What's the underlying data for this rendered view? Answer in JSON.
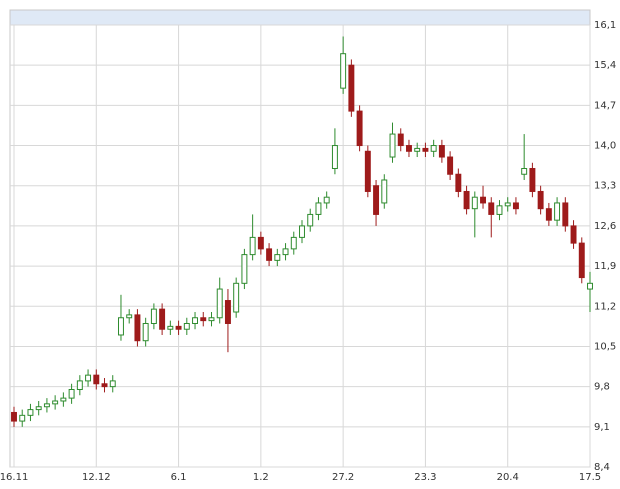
{
  "chart_data": {
    "type": "candlestick",
    "categories": [
      "16.11",
      null,
      null,
      null,
      null,
      null,
      null,
      null,
      null,
      null,
      "12.12",
      null,
      null,
      null,
      null,
      null,
      null,
      null,
      null,
      null,
      "6.1",
      null,
      null,
      null,
      null,
      null,
      null,
      null,
      null,
      null,
      "1.2",
      null,
      null,
      null,
      null,
      null,
      null,
      null,
      null,
      null,
      "27.2",
      null,
      null,
      null,
      null,
      null,
      null,
      null,
      null,
      null,
      "23.3",
      null,
      null,
      null,
      null,
      null,
      null,
      null,
      null,
      null,
      "20.4",
      null,
      null,
      null,
      null,
      null,
      null,
      null,
      null,
      null,
      "17.5"
    ],
    "open": [
      9.35,
      9.2,
      9.3,
      9.4,
      9.45,
      9.5,
      9.55,
      9.6,
      9.75,
      9.9,
      10.0,
      9.85,
      9.8,
      10.7,
      11.0,
      11.05,
      10.6,
      10.9,
      11.15,
      10.8,
      10.85,
      10.8,
      10.9,
      11.0,
      10.95,
      11.0,
      11.3,
      11.1,
      11.6,
      12.1,
      12.4,
      12.2,
      12.0,
      12.1,
      12.2,
      12.4,
      12.6,
      12.8,
      13.0,
      13.6,
      15.0,
      15.4,
      14.6,
      13.9,
      13.3,
      13.0,
      13.8,
      14.2,
      14.0,
      13.9,
      13.95,
      13.9,
      14.0,
      13.8,
      13.5,
      13.2,
      12.9,
      13.1,
      13.0,
      12.8,
      12.95,
      13.0,
      13.5,
      13.6,
      13.2,
      12.9,
      12.7,
      13.0,
      12.6,
      12.3,
      11.5
    ],
    "high": [
      9.45,
      9.4,
      9.5,
      9.55,
      9.6,
      9.65,
      9.7,
      9.85,
      10.0,
      10.1,
      10.1,
      9.95,
      10.0,
      11.4,
      11.15,
      11.15,
      11.0,
      11.25,
      11.25,
      10.95,
      10.95,
      11.0,
      11.1,
      11.1,
      11.1,
      11.7,
      11.5,
      11.7,
      12.2,
      12.8,
      12.5,
      12.3,
      12.2,
      12.3,
      12.5,
      12.7,
      12.9,
      13.1,
      13.2,
      14.3,
      15.9,
      15.5,
      14.7,
      14.0,
      13.4,
      13.5,
      14.4,
      14.3,
      14.1,
      14.05,
      14.05,
      14.1,
      14.1,
      13.9,
      13.6,
      13.3,
      13.2,
      13.3,
      13.1,
      13.05,
      13.1,
      13.1,
      14.2,
      13.7,
      13.3,
      13.0,
      13.1,
      13.1,
      12.7,
      12.4,
      11.8
    ],
    "low": [
      9.1,
      9.1,
      9.2,
      9.3,
      9.35,
      9.4,
      9.45,
      9.5,
      9.65,
      9.8,
      9.75,
      9.7,
      9.7,
      10.6,
      10.9,
      10.5,
      10.5,
      10.8,
      10.7,
      10.7,
      10.7,
      10.7,
      10.8,
      10.85,
      10.85,
      10.9,
      10.4,
      11.0,
      11.5,
      12.0,
      12.1,
      11.9,
      11.9,
      12.0,
      12.1,
      12.3,
      12.5,
      12.7,
      12.9,
      13.5,
      14.9,
      14.5,
      13.9,
      13.1,
      12.6,
      12.9,
      13.7,
      13.9,
      13.8,
      13.8,
      13.8,
      13.8,
      13.7,
      13.4,
      13.1,
      12.8,
      12.4,
      12.9,
      12.4,
      12.7,
      12.85,
      12.8,
      13.4,
      13.1,
      12.8,
      12.6,
      12.6,
      12.5,
      12.2,
      11.6,
      11.1
    ],
    "close": [
      9.2,
      9.3,
      9.4,
      9.45,
      9.5,
      9.55,
      9.6,
      9.75,
      9.9,
      10.0,
      9.85,
      9.8,
      9.9,
      11.0,
      11.05,
      10.6,
      10.9,
      11.15,
      10.8,
      10.85,
      10.8,
      10.9,
      11.0,
      10.95,
      11.0,
      11.5,
      10.9,
      11.6,
      12.1,
      12.4,
      12.2,
      12.0,
      12.1,
      12.2,
      12.4,
      12.6,
      12.8,
      13.0,
      13.1,
      14.0,
      15.6,
      14.6,
      14.0,
      13.2,
      12.8,
      13.4,
      14.2,
      14.0,
      13.9,
      13.95,
      13.9,
      14.0,
      13.8,
      13.5,
      13.2,
      12.9,
      13.1,
      13.0,
      12.8,
      12.95,
      13.0,
      12.9,
      13.6,
      13.2,
      12.9,
      12.7,
      13.0,
      12.6,
      12.3,
      11.7,
      11.6
    ],
    "up_color": "#2e8b2e",
    "down_color": "#9e1b1b",
    "ylim": [
      8.4,
      16.1
    ],
    "yticks": [
      {
        "value": 8.4,
        "label": "8,4"
      },
      {
        "value": 9.1,
        "label": "9,1"
      },
      {
        "value": 9.8,
        "label": "9,8"
      },
      {
        "value": 10.5,
        "label": "10,5"
      },
      {
        "value": 11.2,
        "label": "11,2"
      },
      {
        "value": 11.9,
        "label": "11,9"
      },
      {
        "value": 12.6,
        "label": "12,6"
      },
      {
        "value": 13.3,
        "label": "13,3"
      },
      {
        "value": 14.0,
        "label": "14,0"
      },
      {
        "value": 14.7,
        "label": "14,7"
      },
      {
        "value": 15.4,
        "label": "15,4"
      },
      {
        "value": 16.1,
        "label": "16,1"
      }
    ],
    "grid": true
  }
}
